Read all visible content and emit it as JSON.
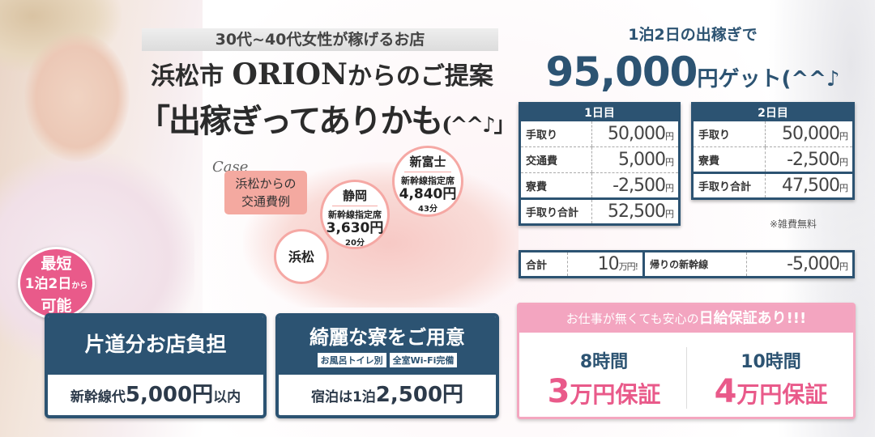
{
  "left": {
    "tagline": "30代~40代女性が稼げるお店",
    "title_city": "浜松市",
    "title_brand": "ORION",
    "title_suffix": "からのご提案",
    "title_main": "「出稼ぎってありかも",
    "title_emote": "(^^♪」",
    "case_label": "Case",
    "case_box": [
      "浜松からの",
      "交通費例"
    ],
    "stations": [
      {
        "name": "浜松"
      },
      {
        "name": "静岡",
        "seat": "新幹線指定席",
        "price": "3,630円",
        "time": "20分"
      },
      {
        "name": "新富士",
        "seat": "新幹線指定席",
        "price": "4,840円",
        "time": "43分"
      }
    ],
    "badge": [
      "最短",
      "1泊2日",
      "から",
      "可能"
    ],
    "features": [
      {
        "title": "片道分お店負担",
        "bottom_pre": "新幹線代",
        "bottom_num": "5,000円",
        "bottom_post": "以内"
      },
      {
        "title": "綺麗な寮をご用意",
        "chips": [
          "お風呂トイレ別",
          "全室Wi-Fi完備"
        ],
        "bottom_pre": "宿泊は1泊",
        "bottom_num": "2,500円",
        "bottom_post": ""
      }
    ]
  },
  "right": {
    "subhead": "1泊2日の出稼ぎで",
    "headline_num": "95,000",
    "headline_rest": "円ゲット(^^♪",
    "day1": {
      "title": "1日目",
      "rows": [
        [
          "手取り",
          "50,000",
          "円"
        ],
        [
          "交通費",
          "5,000",
          "円"
        ],
        [
          "寮費",
          "-2,500",
          "円"
        ]
      ],
      "total": [
        "手取り合計",
        "52,500",
        "円"
      ]
    },
    "day2": {
      "title": "2日目",
      "rows": [
        [
          "手取り",
          "50,000",
          "円"
        ],
        [
          "寮費",
          "-2,500",
          "円"
        ]
      ],
      "total": [
        "手取り合計",
        "47,500",
        "円"
      ]
    },
    "note": "※雑費無料",
    "summary": {
      "total_label": "合計",
      "total_value": "10",
      "total_unit": "万円!",
      "return_label": "帰りの新幹線",
      "return_value": "-5,000",
      "return_unit": "円"
    },
    "guarantee": {
      "header_pre": "お仕事が無くても安心の",
      "header_bold": "日給保証あり!!!",
      "cols": [
        {
          "hours": "8時間",
          "num": "3",
          "rest": "万円保証"
        },
        {
          "hours": "10時間",
          "num": "4",
          "rest": "万円保証"
        }
      ]
    }
  },
  "colors": {
    "navy": "#2c5372",
    "pink": "#e95a8a",
    "salmon": "#f4a9a0"
  }
}
